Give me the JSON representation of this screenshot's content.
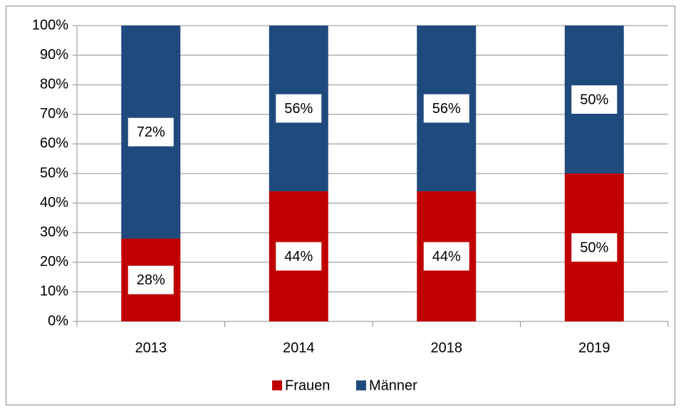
{
  "chart_data": {
    "type": "stacked_bar",
    "categories": [
      "2013",
      "2014",
      "2018",
      "2019"
    ],
    "series": [
      {
        "name": "Frauen",
        "color": "#c00000",
        "values": [
          28,
          44,
          44,
          50
        ],
        "value_labels": [
          "28%",
          "44%",
          "44%",
          "50%"
        ]
      },
      {
        "name": "Männer",
        "color": "#1f4a7e",
        "values": [
          72,
          56,
          56,
          50
        ],
        "value_labels": [
          "72%",
          "56%",
          "56%",
          "50%"
        ]
      }
    ],
    "ylim": [
      0,
      100
    ],
    "yticks": [
      {
        "value": 0,
        "label": "0%"
      },
      {
        "value": 10,
        "label": "10%"
      },
      {
        "value": 20,
        "label": "20%"
      },
      {
        "value": 30,
        "label": "30%"
      },
      {
        "value": 40,
        "label": "40%"
      },
      {
        "value": 50,
        "label": "50%"
      },
      {
        "value": 60,
        "label": "60%"
      },
      {
        "value": 70,
        "label": "70%"
      },
      {
        "value": 80,
        "label": "80%"
      },
      {
        "value": 90,
        "label": "90%"
      },
      {
        "value": 100,
        "label": "100%"
      }
    ],
    "grid": true,
    "legend": "bottom"
  }
}
